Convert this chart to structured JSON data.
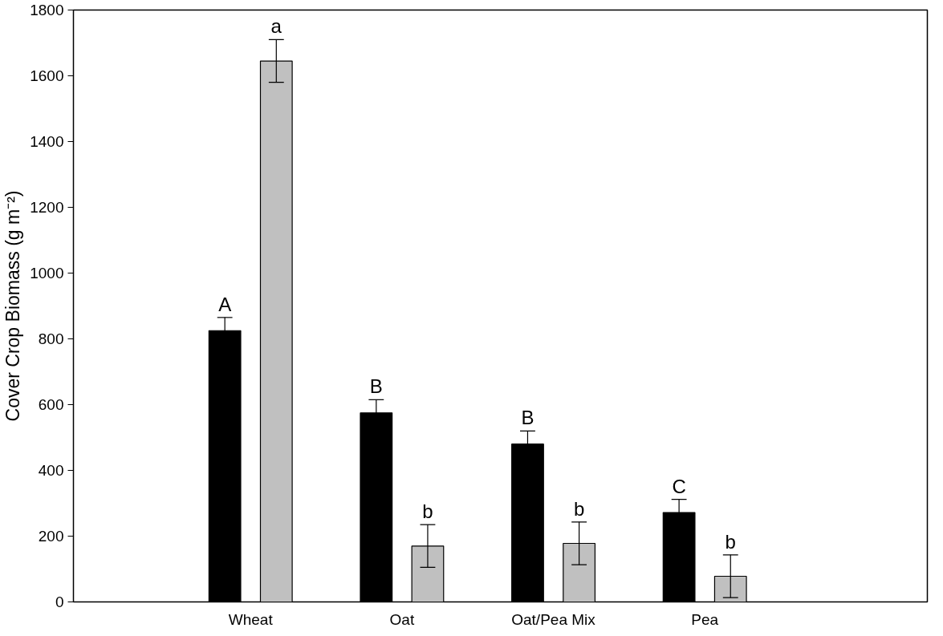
{
  "chart_data": {
    "type": "bar",
    "ylabel": "Cover Crop Biomass (g m⁻²)",
    "categories": [
      "Wheat",
      "Oat",
      "Oat/Pea Mix",
      "Pea"
    ],
    "series": [
      {
        "color": "#000000",
        "values": [
          825,
          575,
          480,
          272
        ],
        "errors": [
          40,
          40,
          40,
          40
        ]
      },
      {
        "color": "#c0c0c0",
        "values": [
          1645,
          170,
          178,
          78
        ],
        "errors": [
          65,
          65,
          65,
          65
        ]
      }
    ],
    "ylim": [
      0,
      1800
    ],
    "yticks": [
      0,
      200,
      400,
      600,
      800,
      1000,
      1200,
      1400,
      1600,
      1800
    ],
    "grid": false,
    "annotations": [
      "A",
      "a",
      "B",
      "b",
      "B",
      "b",
      "C",
      "b"
    ]
  }
}
